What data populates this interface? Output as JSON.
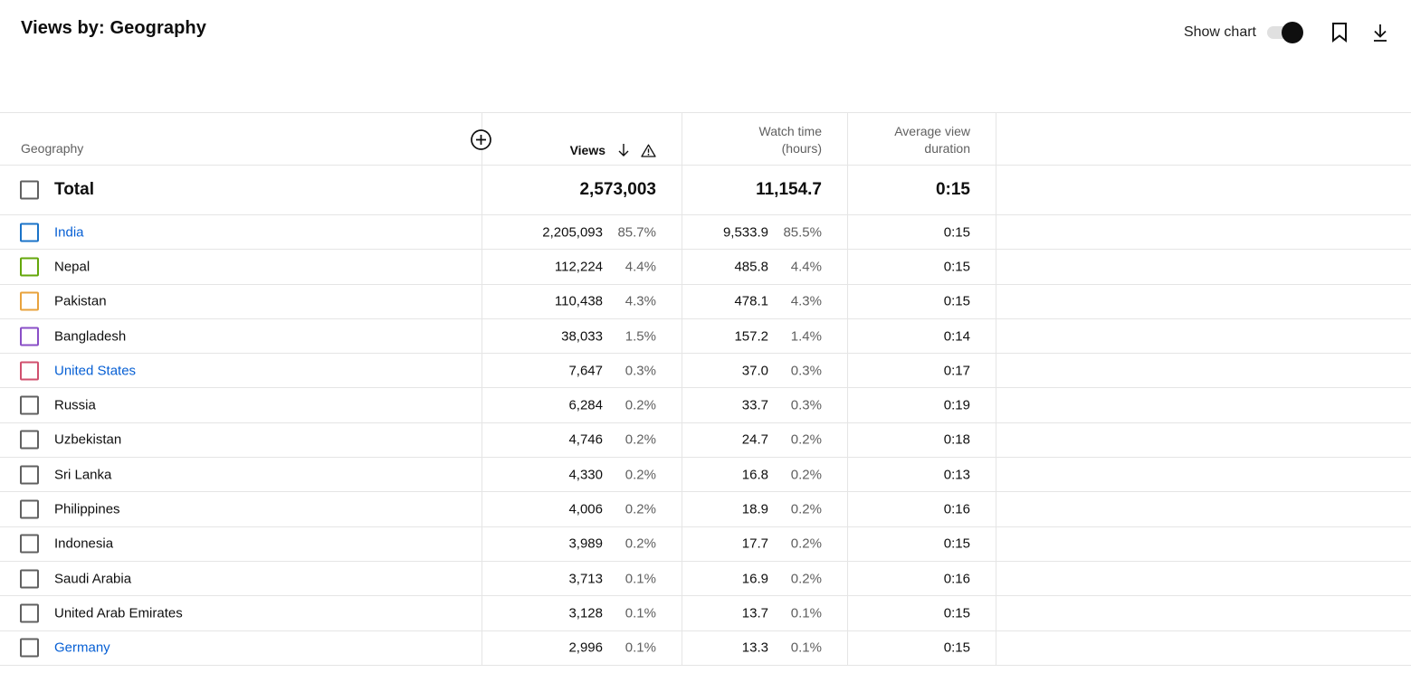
{
  "header": {
    "title": "Views by: Geography",
    "show_chart_label": "Show chart",
    "show_chart_on": true
  },
  "table": {
    "columns": {
      "geography": "Geography",
      "views": "Views",
      "watch_time": [
        "Watch time",
        "(hours)"
      ],
      "avg_view_duration": [
        "Average view",
        "duration"
      ]
    },
    "total": {
      "label": "Total",
      "views": "2,573,003",
      "watch_time": "11,154.7",
      "avg_view_duration": "0:15"
    },
    "rows": [
      {
        "name": "India",
        "link": true,
        "color": "#1a73c8",
        "views": "2,205,093",
        "views_pct": "85.7%",
        "watch": "9,533.9",
        "watch_pct": "85.5%",
        "avd": "0:15"
      },
      {
        "name": "Nepal",
        "link": false,
        "color": "#64a70b",
        "views": "112,224",
        "views_pct": "4.4%",
        "watch": "485.8",
        "watch_pct": "4.4%",
        "avd": "0:15"
      },
      {
        "name": "Pakistan",
        "link": false,
        "color": "#e8a33d",
        "views": "110,438",
        "views_pct": "4.3%",
        "watch": "478.1",
        "watch_pct": "4.3%",
        "avd": "0:15"
      },
      {
        "name": "Bangladesh",
        "link": false,
        "color": "#8a4fc7",
        "views": "38,033",
        "views_pct": "1.5%",
        "watch": "157.2",
        "watch_pct": "1.4%",
        "avd": "0:14"
      },
      {
        "name": "United States",
        "link": true,
        "color": "#d0506e",
        "views": "7,647",
        "views_pct": "0.3%",
        "watch": "37.0",
        "watch_pct": "0.3%",
        "avd": "0:17"
      },
      {
        "name": "Russia",
        "link": false,
        "color": "#606060",
        "views": "6,284",
        "views_pct": "0.2%",
        "watch": "33.7",
        "watch_pct": "0.3%",
        "avd": "0:19"
      },
      {
        "name": "Uzbekistan",
        "link": false,
        "color": "#606060",
        "views": "4,746",
        "views_pct": "0.2%",
        "watch": "24.7",
        "watch_pct": "0.2%",
        "avd": "0:18"
      },
      {
        "name": "Sri Lanka",
        "link": false,
        "color": "#606060",
        "views": "4,330",
        "views_pct": "0.2%",
        "watch": "16.8",
        "watch_pct": "0.2%",
        "avd": "0:13"
      },
      {
        "name": "Philippines",
        "link": false,
        "color": "#606060",
        "views": "4,006",
        "views_pct": "0.2%",
        "watch": "18.9",
        "watch_pct": "0.2%",
        "avd": "0:16"
      },
      {
        "name": "Indonesia",
        "link": false,
        "color": "#606060",
        "views": "3,989",
        "views_pct": "0.2%",
        "watch": "17.7",
        "watch_pct": "0.2%",
        "avd": "0:15"
      },
      {
        "name": "Saudi Arabia",
        "link": false,
        "color": "#606060",
        "views": "3,713",
        "views_pct": "0.1%",
        "watch": "16.9",
        "watch_pct": "0.2%",
        "avd": "0:16"
      },
      {
        "name": "United Arab Emirates",
        "link": false,
        "color": "#606060",
        "views": "3,128",
        "views_pct": "0.1%",
        "watch": "13.7",
        "watch_pct": "0.1%",
        "avd": "0:15"
      },
      {
        "name": "Germany",
        "link": true,
        "color": "#606060",
        "views": "2,996",
        "views_pct": "0.1%",
        "watch": "13.3",
        "watch_pct": "0.1%",
        "avd": "0:15"
      }
    ]
  },
  "icons": {
    "toggle": "toggle-switch",
    "bookmark": "bookmark-icon",
    "download": "download-icon",
    "add_column": "add-circle-icon",
    "sort": "arrow-down-icon",
    "warning": "warning-icon"
  }
}
